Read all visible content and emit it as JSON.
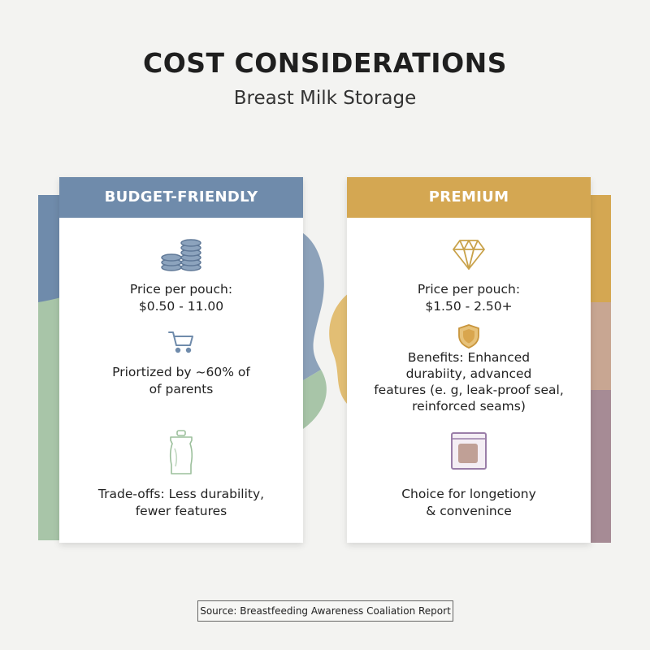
{
  "header": {
    "title": "COST CONSIDERATIONS",
    "subtitle": "Breast Milk Storage"
  },
  "colors": {
    "budget_blue": "#6f8bab",
    "budget_green": "#a8c5a8",
    "premium_gold": "#d4a752",
    "premium_mauve": "#a68b95"
  },
  "budget": {
    "header": "BUDGET-FRIENDLY",
    "price_label": "Price per pouch:",
    "price_value": "$0.50 - 11.00",
    "priority_line1": "Priortized by ~60% of",
    "priority_line2": "of parents",
    "tradeoff_line1": "Trade-offs: Less durability,",
    "tradeoff_line2": "fewer features",
    "icons": [
      "coins-icon",
      "shopping-cart-icon",
      "storage-pouch-icon"
    ]
  },
  "premium": {
    "header": "PREMIUM",
    "price_label": "Price per pouch:",
    "price_value": "$1.50 - 2.50+",
    "benefits_line1": "Benefits: Enhanced",
    "benefits_line2": "durabiity, advanced",
    "benefits_line3": "features (e. g, leak-proof seal,",
    "benefits_line4": "reinforced seams)",
    "choice_line1": "Choice for longetiony",
    "choice_line2": "& convenince",
    "icons": [
      "diamond-icon",
      "shield-icon",
      "premium-pouch-icon"
    ]
  },
  "source": "Source: Breastfeeding Awareness Coaliation Report"
}
